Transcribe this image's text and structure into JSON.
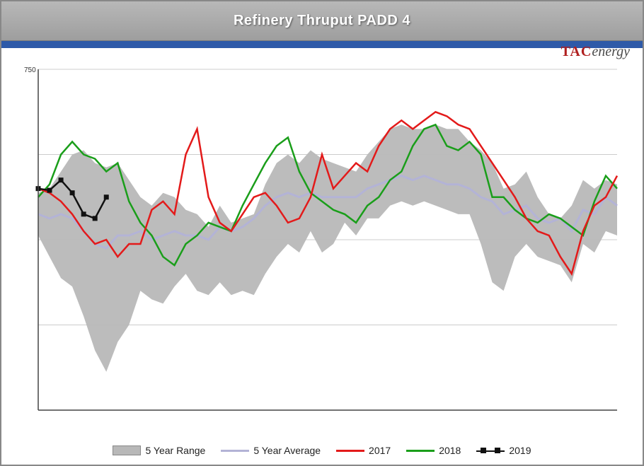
{
  "title": "Refinery Thruput PADD 4",
  "brand": {
    "left": "TAC",
    "right": "energy"
  },
  "colors": {
    "range_fill": "#b8b8b8",
    "avg": "#b3b3d6",
    "s2017": "#e31a1a",
    "s2018": "#1a9e1a",
    "s2019": "#111111",
    "title_bg": "#a6a6a6",
    "bluebar": "#2e5aa8",
    "grid": "#cccccc",
    "axis": "#444444"
  },
  "legend": {
    "range": "5 Year Range",
    "avg": "5 Year Average",
    "s2017": "2017",
    "s2018": "2018",
    "s2019": "2019"
  },
  "chart": {
    "type": "line-with-range-band",
    "x_count": 52,
    "ylim": [
      350,
      750
    ],
    "ytick_step": 100,
    "yticks": [
      350,
      450,
      550,
      650,
      750
    ],
    "ylabel_show_only_top": "750",
    "range_upper": [
      605,
      610,
      630,
      650,
      655,
      640,
      635,
      640,
      620,
      600,
      590,
      605,
      600,
      585,
      580,
      565,
      590,
      570,
      575,
      580,
      615,
      640,
      650,
      640,
      655,
      645,
      640,
      635,
      630,
      650,
      665,
      680,
      685,
      680,
      680,
      685,
      680,
      680,
      665,
      655,
      640,
      610,
      615,
      630,
      600,
      580,
      575,
      590,
      620,
      610,
      620,
      615
    ],
    "range_lower": [
      555,
      530,
      505,
      495,
      460,
      420,
      395,
      430,
      450,
      490,
      480,
      475,
      495,
      510,
      490,
      485,
      500,
      485,
      490,
      485,
      510,
      530,
      545,
      535,
      560,
      535,
      545,
      570,
      555,
      575,
      575,
      590,
      595,
      590,
      595,
      590,
      585,
      580,
      580,
      545,
      500,
      490,
      530,
      545,
      530,
      525,
      520,
      500,
      545,
      535,
      560,
      555
    ],
    "avg": [
      580,
      575,
      580,
      575,
      560,
      545,
      540,
      555,
      555,
      560,
      550,
      555,
      560,
      555,
      555,
      550,
      565,
      560,
      565,
      575,
      590,
      600,
      605,
      600,
      605,
      600,
      600,
      600,
      600,
      610,
      615,
      620,
      625,
      620,
      625,
      620,
      615,
      615,
      610,
      600,
      595,
      580,
      585,
      590,
      575,
      570,
      575,
      560,
      585,
      580,
      600,
      590
    ],
    "s2017": [
      610,
      605,
      595,
      580,
      560,
      545,
      550,
      530,
      545,
      545,
      585,
      595,
      580,
      650,
      680,
      600,
      570,
      560,
      580,
      600,
      605,
      590,
      570,
      575,
      600,
      650,
      610,
      625,
      640,
      630,
      660,
      680,
      690,
      680,
      690,
      700,
      695,
      685,
      680,
      660,
      640,
      620,
      600,
      575,
      560,
      555,
      530,
      510,
      560,
      590,
      600,
      625
    ],
    "s2018": [
      600,
      615,
      650,
      665,
      650,
      645,
      630,
      640,
      595,
      570,
      555,
      530,
      520,
      545,
      555,
      570,
      565,
      560,
      590,
      615,
      640,
      660,
      670,
      630,
      605,
      595,
      585,
      580,
      570,
      590,
      600,
      620,
      630,
      660,
      680,
      685,
      660,
      655,
      665,
      650,
      600,
      600,
      585,
      575,
      570,
      580,
      575,
      565,
      555,
      595,
      625,
      610
    ],
    "s2019_x": [
      0,
      1,
      2,
      3,
      4,
      5,
      6
    ],
    "s2019_y": [
      610,
      608,
      620,
      605,
      580,
      575,
      600
    ],
    "line_width": 2.5,
    "marker_size": 7
  }
}
